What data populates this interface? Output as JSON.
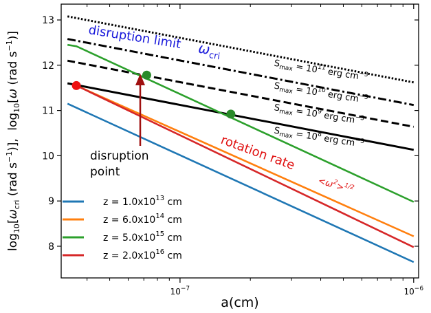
{
  "chart_data": {
    "type": "line",
    "xscale": "log",
    "xlim": [
      3.1e-08,
      1.05e-06
    ],
    "ylim": [
      7.3,
      13.35
    ],
    "xlabel": "a(cm)",
    "xticks": [
      {
        "value": 1e-07,
        "base": "10",
        "exp": "−7"
      },
      {
        "value": 1e-06,
        "base": "10",
        "exp": "−6"
      }
    ],
    "yticks": [
      8,
      9,
      10,
      11,
      12,
      13
    ],
    "ylabel": {
      "log": "log",
      "log_sub": "10",
      "open": "[",
      "omega": "ω",
      "cri_sub": "cri",
      "unit_open": " (rad s",
      "unit_exp": "−1",
      "unit_close": ")], ",
      "log2": "log",
      "log2_sub": "10",
      "open2": "[",
      "omega2": "ω",
      "unit2": " (rad s",
      "unit2_exp": "−1",
      "unit2_close": ")]"
    },
    "series": [
      {
        "name": "z = 1.0x10",
        "exp": "13",
        "unit": " cm",
        "color": "#1f77b4",
        "kind": "rotation",
        "x": [
          3.3e-08,
          1e-06
        ],
        "y": [
          11.15,
          7.65
        ]
      },
      {
        "name": "z = 6.0x10",
        "exp": "14",
        "unit": " cm",
        "color": "#ff7f0e",
        "kind": "rotation",
        "x": [
          3.6e-08,
          1e-06
        ],
        "y": [
          11.55,
          8.22
        ]
      },
      {
        "name": "z = 5.0x10",
        "exp": "15",
        "unit": " cm",
        "color": "#2ca02c",
        "kind": "rotation",
        "x": [
          3.3e-08,
          3.6e-08,
          1e-06
        ],
        "y": [
          12.45,
          12.42,
          8.98
        ]
      },
      {
        "name": "z = 2.0x10",
        "exp": "16",
        "unit": " cm",
        "color": "#d62728",
        "kind": "rotation",
        "x": [
          3.6e-08,
          1e-06
        ],
        "y": [
          11.55,
          7.98
        ]
      }
    ],
    "limits": [
      {
        "label": "S",
        "sub": "max",
        "eq": " = 10",
        "exp": "11",
        "unit": " erg cm",
        "unit_exp": "−3",
        "dash": "dotted",
        "x": [
          3.3e-08,
          1e-06
        ],
        "y": [
          13.08,
          11.62
        ]
      },
      {
        "label": "S",
        "sub": "max",
        "eq": " = 10",
        "exp": "10",
        "unit": " erg cm",
        "unit_exp": "−3",
        "dash": "dashdot",
        "x": [
          3.3e-08,
          1e-06
        ],
        "y": [
          12.58,
          11.12
        ]
      },
      {
        "label": "S",
        "sub": "max",
        "eq": " = 10",
        "exp": "9",
        "unit": " erg cm",
        "unit_exp": "−3",
        "dash": "dashed",
        "x": [
          3.3e-08,
          1e-06
        ],
        "y": [
          12.1,
          10.64
        ]
      },
      {
        "label": "S",
        "sub": "max",
        "eq": " = 10",
        "exp": "8",
        "unit": " erg cm",
        "unit_exp": "−3",
        "dash": "solid",
        "x": [
          3.3e-08,
          1e-06
        ],
        "y": [
          11.6,
          10.13
        ]
      }
    ],
    "points": [
      {
        "x": 3.6e-08,
        "y": 11.55,
        "color": "#ee1111"
      },
      {
        "x": 7.2e-08,
        "y": 11.78,
        "color": "#2a8a2a"
      },
      {
        "x": 1.65e-07,
        "y": 10.92,
        "color": "#2a8a2a"
      }
    ],
    "annotations": {
      "disruption_limit": "disruption limit",
      "omega_cri": "ω",
      "omega_cri_sub": "cri",
      "disruption_point_line1": "disruption",
      "disruption_point_line2": "point",
      "rotation_rate": "rotation rate",
      "omega_rms": "<ω",
      "omega_rms_exp": "2",
      "omega_rms_close": ">",
      "omega_rms_pow": "1/2"
    },
    "colors": {
      "annotation_blue": "#1a1adb",
      "annotation_red": "#e01010",
      "arrow": "#a01010"
    },
    "legend_position": "lower-left"
  }
}
